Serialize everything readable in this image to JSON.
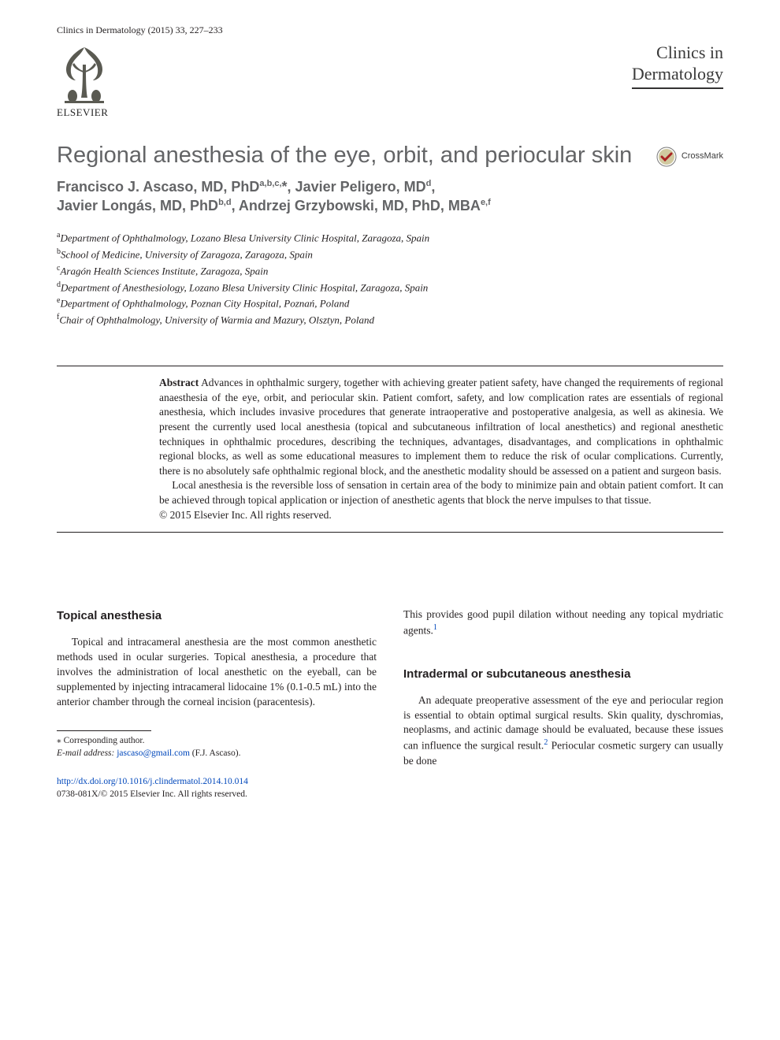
{
  "running_head": "Clinics in Dermatology (2015) 33, 227–233",
  "elsevier_label": "ELSEVIER",
  "journal": {
    "line1": "Clinics in",
    "line2": "Dermatology"
  },
  "crossmark_label": "CrossMark",
  "title": "Regional anesthesia of the eye, orbit, and periocular skin",
  "authors_html": "Francisco J. Ascaso, MD, PhD|a,b,c,| *, Javier Peligero, MD|d|,\nJavier Longás, MD, PhD|b,d|, Andrzej Grzybowski, MD, PhD, MBA|e,f|",
  "authors": [
    {
      "name": "Francisco J. Ascaso, MD, PhD",
      "sup": "a,b,c,",
      "corr": true
    },
    {
      "name": "Javier Peligero, MD",
      "sup": "d"
    },
    {
      "name": "Javier Longás, MD, PhD",
      "sup": "b,d"
    },
    {
      "name": "Andrzej Grzybowski, MD, PhD, MBA",
      "sup": "e,f"
    }
  ],
  "affiliations": [
    {
      "key": "a",
      "text": "Department of Ophthalmology, Lozano Blesa University Clinic Hospital, Zaragoza, Spain"
    },
    {
      "key": "b",
      "text": "School of Medicine, University of Zaragoza, Zaragoza, Spain"
    },
    {
      "key": "c",
      "text": "Aragón Health Sciences Institute, Zaragoza, Spain"
    },
    {
      "key": "d",
      "text": "Department of Anesthesiology, Lozano Blesa University Clinic Hospital, Zaragoza, Spain"
    },
    {
      "key": "e",
      "text": "Department of Ophthalmology, Poznan City Hospital, Poznań, Poland"
    },
    {
      "key": "f",
      "text": "Chair of Ophthalmology, University of Warmia and Mazury, Olsztyn, Poland"
    }
  ],
  "abstract": {
    "label": "Abstract",
    "p1": "Advances in ophthalmic surgery, together with achieving greater patient safety, have changed the requirements of regional anaesthesia of the eye, orbit, and periocular skin. Patient comfort, safety, and low complication rates are essentials of regional anesthesia, which includes invasive procedures that generate intraoperative and postoperative analgesia, as well as akinesia. We present the currently used local anesthesia (topical and subcutaneous infiltration of local anesthetics) and regional anesthetic techniques in ophthalmic procedures, describing the techniques, advantages, disadvantages, and complications in ophthalmic regional blocks, as well as some educational measures to implement them to reduce the risk of ocular complications. Currently, there is no absolutely safe ophthalmic regional block, and the anesthetic modality should be assessed on a patient and surgeon basis.",
    "p2": "Local anesthesia is the reversible loss of sensation in certain area of the body to minimize pain and obtain patient comfort. It can be achieved through topical application or injection of anesthetic agents that block the nerve impulses to that tissue.",
    "copyright": "© 2015 Elsevier Inc. All rights reserved."
  },
  "sections": {
    "topical": {
      "head": "Topical anesthesia",
      "p1": "Topical and intracameral anesthesia are the most common anesthetic methods used in ocular surgeries. Topical anesthesia, a procedure that involves the administration of local anesthetic on the eyeball, can be supplemented by injecting intracameral lidocaine 1% (0.1-0.5 mL) into the anterior chamber through the corneal incision (paracentesis).",
      "cont": "This provides good pupil dilation without needing any topical mydriatic agents.",
      "ref1": "1"
    },
    "intradermal": {
      "head": "Intradermal or subcutaneous anesthesia",
      "p1a": "An adequate preoperative assessment of the eye and periocular region is essential to obtain optimal surgical results. Skin quality, dyschromias, neoplasms, and actinic damage should be evaluated, because these issues can influence the surgical result.",
      "ref2": "2",
      "p1b": " Periocular cosmetic surgery can usually be done"
    }
  },
  "footnotes": {
    "corr_marker": "⁎ Corresponding author.",
    "email_label": "E-mail address:",
    "email": "jascaso@gmail.com",
    "email_person": "(F.J. Ascaso)."
  },
  "doi": {
    "url": "http://dx.doi.org/10.1016/j.clindermatol.2014.10.014",
    "issn_line": "0738-081X/© 2015 Elsevier Inc. All rights reserved."
  },
  "colors": {
    "text": "#231f20",
    "heading": "#636466",
    "link": "#0047bb",
    "elsevier_orange": "#ff6c00",
    "crossmark_ring_outer": "#990000",
    "crossmark_ring_inner": "#cc3333"
  }
}
